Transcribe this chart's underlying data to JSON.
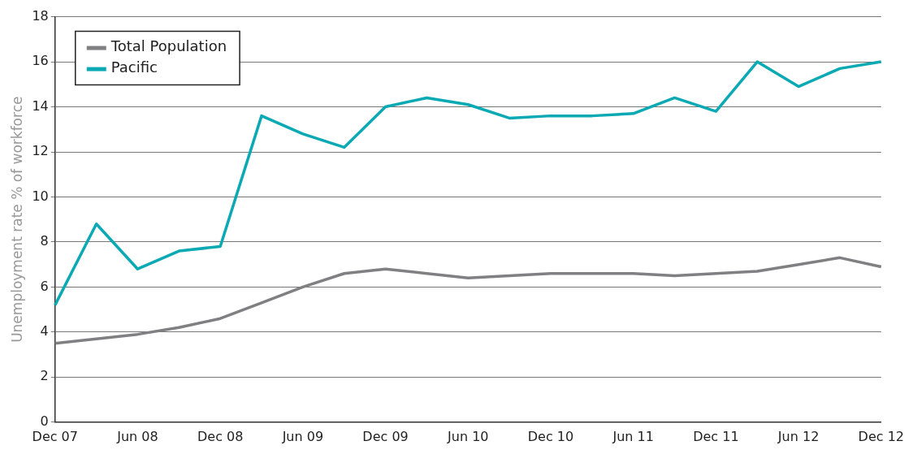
{
  "chart_data": {
    "type": "line",
    "ylabel": "Unemployment rate % of workforce",
    "categories": [
      "Dec 07",
      null,
      "Jun 08",
      null,
      "Dec 08",
      null,
      "Jun 09",
      null,
      "Dec 09",
      null,
      "Jun 10",
      null,
      "Dec 10",
      null,
      "Jun 11",
      null,
      "Dec 11",
      null,
      "Jun 12",
      null,
      "Dec 12"
    ],
    "series": [
      {
        "name": "Total Population",
        "color": "#808083",
        "values": [
          3.5,
          3.7,
          3.9,
          4.2,
          4.6,
          5.3,
          6.0,
          6.6,
          6.8,
          6.6,
          6.4,
          6.5,
          6.6,
          6.6,
          6.6,
          6.5,
          6.6,
          6.7,
          7.0,
          7.3,
          6.9
        ]
      },
      {
        "name": "Pacific",
        "color": "#0aa9b4",
        "values": [
          5.2,
          8.8,
          6.8,
          7.6,
          7.8,
          13.6,
          12.8,
          12.2,
          14.0,
          14.4,
          14.1,
          13.5,
          13.6,
          13.6,
          13.7,
          14.4,
          13.8,
          16.0,
          14.9,
          15.7,
          16.0
        ]
      }
    ],
    "ylim": [
      0,
      18
    ],
    "yticks": [
      0,
      2,
      4,
      6,
      8,
      10,
      12,
      14,
      16,
      18
    ],
    "grid": "y",
    "legend": "top left",
    "line_style": "solid",
    "marker": "none"
  }
}
